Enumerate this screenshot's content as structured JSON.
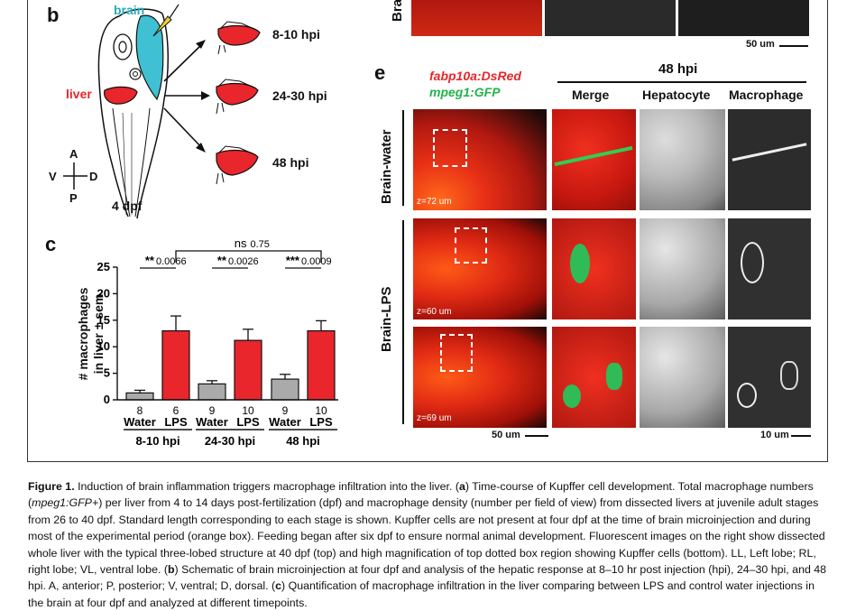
{
  "panel_b": {
    "label": "b",
    "brain": "brain",
    "liver": "liver",
    "times": [
      "8-10 hpi",
      "24-30 hpi",
      "48 hpi"
    ],
    "axes": {
      "A": "A",
      "P": "P",
      "V": "V",
      "D": "D"
    },
    "stage": "4 dpf"
  },
  "panel_c": {
    "label": "c",
    "ylabel_line1": "# macrophages",
    "ylabel_line2": "in liver ± sem",
    "comparisons": [
      {
        "sig": "**",
        "p": "0.0066"
      },
      {
        "sig": "**",
        "p": "0.0026"
      },
      {
        "sig": "***",
        "p": "0.0009"
      }
    ],
    "ns": {
      "sig": "ns",
      "p": "0.75"
    },
    "groups": [
      "8-10 hpi",
      "24-30 hpi",
      "48 hpi"
    ]
  },
  "chart_data": {
    "type": "bar",
    "categories": [
      "Water",
      "LPS",
      "Water",
      "LPS",
      "Water",
      "LPS"
    ],
    "counts": [
      "8",
      "6",
      "9",
      "10",
      "9",
      "10"
    ],
    "values": [
      1.3,
      13.0,
      3.0,
      11.2,
      3.9,
      13.0
    ],
    "errors": [
      0.5,
      2.8,
      0.6,
      2.1,
      0.9,
      1.9
    ],
    "colors": [
      "#aaaaaa",
      "#e8262b",
      "#aaaaaa",
      "#e8262b",
      "#aaaaaa",
      "#e8262b"
    ],
    "yticks": [
      "0",
      "5",
      "10",
      "15",
      "20",
      "25"
    ],
    "ylim": [
      0,
      25
    ]
  },
  "panel_e": {
    "label": "e",
    "legend1": "fabp10a:DsRed",
    "legend2": "mpeg1:GFP",
    "time": "48 hpi",
    "cols": [
      "Merge",
      "Hepatocyte",
      "Macrophage"
    ],
    "row_water": "Brain-water",
    "row_lps": "Brain-LPS",
    "z_labels": [
      "z=72 um",
      "z=60 um",
      "z=69 um"
    ],
    "scale_left": "50 um",
    "scale_right": "10 um",
    "top_label": "Bra",
    "top_scale": "50 um"
  },
  "caption": {
    "title": "Figure 1.",
    "t1": " Induction of brain inflammation triggers macrophage infiltration into the liver. (",
    "a": "a",
    "t2": ") Time-course of Kupffer cell development. Total macrophage numbers (",
    "gene": "mpeg1:GFP+",
    "t3": ") per liver from 4 to 14 days post-fertilization (dpf) and macrophage density (number per field of view) from dissected livers at juvenile adult stages from 26 to 40 dpf. Standard length corresponding to each stage is shown. Kupffer cells are not present at four dpf at the time of brain microinjection and during most of the experimental period (orange box). Feeding began after six dpf to ensure normal animal development. Fluorescent images on the right show dissected whole liver with the typical three-lobed structure at 40 dpf (top) and high magnification of top dotted box region showing Kupffer cells (bottom). LL, Left lobe; RL, right lobe; VL, ventral lobe. (",
    "b": "b",
    "t4": ") Schematic of brain microinjection at four dpf and analysis of the hepatic response at 8–10 hr post injection (hpi), 24–30 hpi, and 48 hpi. A, anterior; P, posterior; V, ventral; D, dorsal. (",
    "c": "c",
    "t5": ") Quantification of macrophage infiltration in the liver comparing between LPS and control water injections in the brain at four dpf and analyzed at different timepoints."
  }
}
